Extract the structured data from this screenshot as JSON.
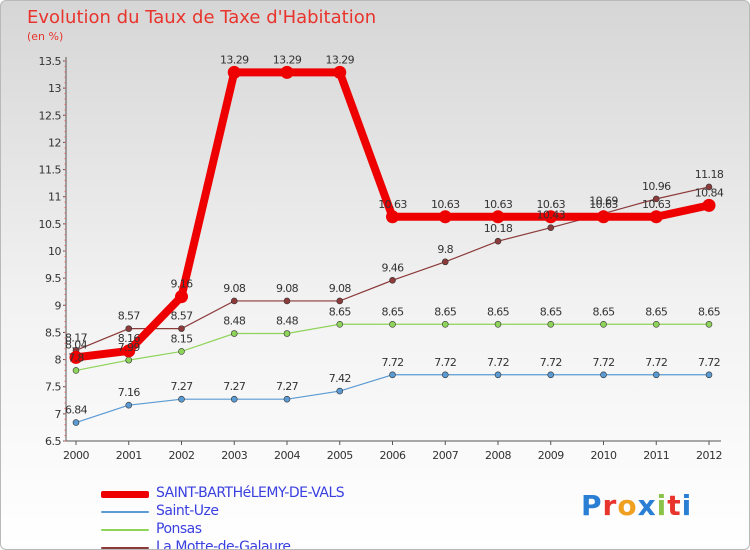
{
  "title": "Evolution du Taux de Taxe d'Habitation",
  "subtitle": "(en %)",
  "logo": {
    "text": "Proxiti",
    "colors": [
      "#2a7fd4",
      "#e8342c",
      "#f0a020",
      "#2a7fd4",
      "#8bc34a",
      "#e8342c",
      "#2a7fd4"
    ]
  },
  "chart_data": {
    "type": "line",
    "title": "Evolution du Taux de Taxe d'Habitation",
    "ylabel": "(en %)",
    "x": [
      "2000",
      "2001",
      "2002",
      "2003",
      "2004",
      "2005",
      "2006",
      "2007",
      "2008",
      "2009",
      "2010",
      "2011",
      "2012"
    ],
    "ylim": [
      6.5,
      13.5
    ],
    "yticks": [
      "6.5",
      "7",
      "7.5",
      "8",
      "8.5",
      "9",
      "9.5",
      "10",
      "10.5",
      "11",
      "11.5",
      "12",
      "12.5",
      "13",
      "13.5"
    ],
    "grid": false,
    "legend_position": "bottom-left",
    "series": [
      {
        "name": "SAINT-BARTHéLEMY-DE-VALS",
        "color": "#ee0000",
        "values": [
          8.04,
          8.16,
          9.16,
          13.29,
          13.29,
          13.29,
          10.63,
          10.63,
          10.63,
          10.63,
          10.63,
          10.63,
          10.84
        ],
        "labels": [
          "8.04",
          "8.16",
          "9.16",
          "13.29",
          "13.29",
          "13.29",
          "10.63",
          "10.63",
          "10.63",
          "10.63",
          "10.63",
          "10.63",
          "10.84"
        ]
      },
      {
        "name": "Saint-Uze",
        "color": "#5b9ad2",
        "values": [
          6.84,
          7.16,
          7.27,
          7.27,
          7.27,
          7.42,
          7.72,
          7.72,
          7.72,
          7.72,
          7.72,
          7.72,
          7.72
        ],
        "labels": [
          "6.84",
          "7.16",
          "7.27",
          "7.27",
          "7.27",
          "7.42",
          "7.72",
          "7.72",
          "7.72",
          "7.72",
          "7.72",
          "7.72",
          "7.72"
        ]
      },
      {
        "name": "Ponsas",
        "color": "#8fd45a",
        "values": [
          7.8,
          7.99,
          8.15,
          8.48,
          8.48,
          8.65,
          8.65,
          8.65,
          8.65,
          8.65,
          8.65,
          8.65,
          8.65
        ],
        "labels": [
          "7.8",
          "7.99",
          "8.15",
          "8.48",
          "8.48",
          "8.65",
          "8.65",
          "8.65",
          "8.65",
          "8.65",
          "8.65",
          "8.65",
          "8.65"
        ]
      },
      {
        "name": "La Motte-de-Galaure",
        "color": "#8c3a3a",
        "values": [
          8.17,
          8.57,
          8.57,
          9.08,
          9.08,
          9.08,
          9.46,
          9.8,
          10.18,
          10.43,
          10.69,
          10.96,
          11.18
        ],
        "labels": [
          "8.17",
          "8.57",
          "8.57",
          "9.08",
          "9.08",
          "9.08",
          "9.46",
          "9.8",
          "10.18",
          "10.43",
          "10.69",
          "10.96",
          "11.18"
        ]
      }
    ]
  }
}
